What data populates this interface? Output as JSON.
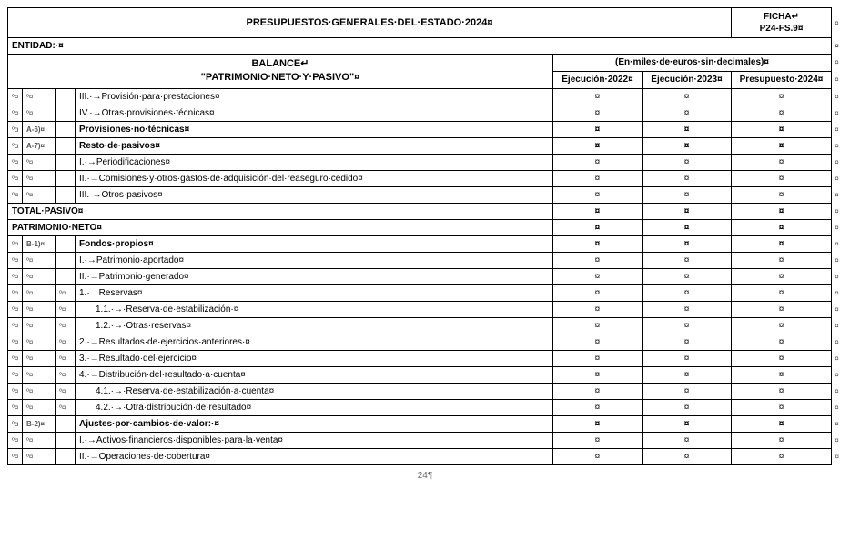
{
  "marker": "¤",
  "newline_marker": "↵",
  "tab_marker": "→",
  "page_number": "24¶",
  "header": {
    "title": "PRESUPUESTOS·GENERALES·DEL·ESTADO·2024¤",
    "ficha_line1": "FICHA↵",
    "ficha_line2": "P24-FS.9¤"
  },
  "entidad_label": "ENTIDAD:·¤",
  "balance": {
    "line1": "BALANCE↵",
    "line2": "\"PATRIMONIO·NETO·Y·PASIVO\"¤"
  },
  "currency_note": "(En·miles·de·euros·sin·decimales)¤",
  "columns": {
    "c1": "Ejecución·2022¤",
    "c2": "Ejecución·2023¤",
    "c3": "Presupuesto·2024¤"
  },
  "rows": [
    {
      "pre": [
        "º¤",
        "º¤",
        ""
      ],
      "indent": 0,
      "label": "III.·→Provisión·para·prestaciones¤",
      "bold": false
    },
    {
      "pre": [
        "º¤",
        "º¤",
        ""
      ],
      "indent": 0,
      "label": "IV.·→Otras·provisiones·técnicas¤",
      "bold": false
    },
    {
      "pre": [
        "ºɑ",
        "A-6)¤",
        ""
      ],
      "indent": 0,
      "label": "Provisiones·no·técnicas¤",
      "bold": true
    },
    {
      "pre": [
        "ºɑ",
        "A-7)¤",
        ""
      ],
      "indent": 0,
      "label": "Resto·de·pasivos¤",
      "bold": true
    },
    {
      "pre": [
        "º¤",
        "º¤",
        ""
      ],
      "indent": 0,
      "label": "I.·→Periodificaciones¤",
      "bold": false
    },
    {
      "pre": [
        "º¤",
        "º¤",
        ""
      ],
      "indent": 0,
      "label": "II.·→Comisiones·y·otros·gastos·de·adquisición·del·reaseguro·cedido¤",
      "bold": false
    },
    {
      "pre": [
        "º¤",
        "º¤",
        ""
      ],
      "indent": 0,
      "label": "III.·→Otros·pasivos¤",
      "bold": false
    },
    {
      "pre": [
        "",
        "",
        ""
      ],
      "full": true,
      "label": "TOTAL·PASIVO¤",
      "bold": true
    },
    {
      "pre": [
        "",
        "",
        ""
      ],
      "full": true,
      "label": "PATRIMONIO·NETO¤",
      "bold": true
    },
    {
      "pre": [
        "º¤",
        "B-1)¤",
        ""
      ],
      "indent": 0,
      "label": "Fondos·propios¤",
      "bold": true
    },
    {
      "pre": [
        "º¤",
        "º¤",
        ""
      ],
      "indent": 0,
      "label": "I.·→Patrimonio·aportado¤",
      "bold": false
    },
    {
      "pre": [
        "º¤",
        "º¤",
        ""
      ],
      "indent": 0,
      "label": "II.·→Patrimonio·generado¤",
      "bold": false
    },
    {
      "pre": [
        "º¤",
        "º¤",
        "º¤"
      ],
      "indent": 0,
      "label": "1.·→Reservas¤",
      "bold": false
    },
    {
      "pre": [
        "º¤",
        "º¤",
        "º¤"
      ],
      "indent": 1,
      "label": "1.1.·→·Reserva·de·estabilización·¤",
      "bold": false
    },
    {
      "pre": [
        "º¤",
        "º¤",
        "º¤"
      ],
      "indent": 1,
      "label": "1.2.·→·Otras·reservas¤",
      "bold": false
    },
    {
      "pre": [
        "º¤",
        "º¤",
        "º¤"
      ],
      "indent": 0,
      "label": "2.·→Resultados·de·ejercicios·anteriores·¤",
      "bold": false
    },
    {
      "pre": [
        "º¤",
        "º¤",
        "º¤"
      ],
      "indent": 0,
      "label": "3.·→Resultado·del·ejercicio¤",
      "bold": false
    },
    {
      "pre": [
        "º¤",
        "º¤",
        "º¤"
      ],
      "indent": 0,
      "label": "4.·→Distribución·del·resultado·a·cuenta¤",
      "bold": false
    },
    {
      "pre": [
        "º¤",
        "º¤",
        "º¤"
      ],
      "indent": 1,
      "label": "4.1.·→·Reserva·de·estabilización·a·cuenta¤",
      "bold": false
    },
    {
      "pre": [
        "º¤",
        "º¤",
        "º¤"
      ],
      "indent": 1,
      "label": "4.2.·→·Otra·distribución·de·resultado¤",
      "bold": false
    },
    {
      "pre": [
        "ºɑ",
        "B-2)¤",
        ""
      ],
      "indent": 0,
      "label": "Ajustes·por·cambios·de·valor:·¤",
      "bold": true
    },
    {
      "pre": [
        "º¤",
        "º¤",
        ""
      ],
      "indent": 0,
      "label": "I.·→Activos·financieros·disponibles·para·la·venta¤",
      "bold": false
    },
    {
      "pre": [
        "º¤",
        "º¤",
        ""
      ],
      "indent": 0,
      "label": "II.·→Operaciones·de·cobertura¤",
      "bold": false
    }
  ]
}
